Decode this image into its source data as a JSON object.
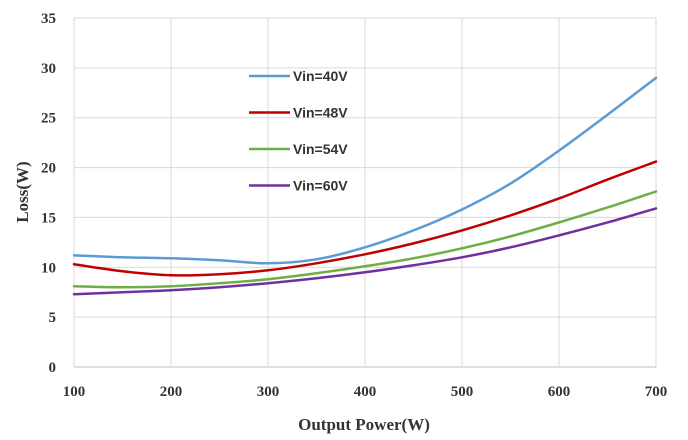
{
  "chart_data": {
    "type": "line",
    "title": "",
    "xlabel": "Output Power(W)",
    "ylabel": "Loss(W)",
    "xlim": [
      100,
      700
    ],
    "ylim": [
      0,
      35
    ],
    "xticks": [
      100,
      200,
      300,
      400,
      500,
      600,
      700
    ],
    "yticks": [
      0,
      5,
      10,
      15,
      20,
      25,
      30,
      35
    ],
    "grid": true,
    "legend_position": "inside-top-left",
    "series": [
      {
        "name": "Vin=40V",
        "color": "#5b9bd5",
        "x": [
          100,
          150,
          200,
          250,
          300,
          350,
          400,
          450,
          500,
          550,
          600,
          650,
          700
        ],
        "values": [
          11.2,
          11.0,
          10.9,
          10.7,
          10.4,
          10.8,
          12.0,
          13.7,
          15.8,
          18.4,
          21.7,
          25.3,
          29.0
        ]
      },
      {
        "name": "Vin=48V",
        "color": "#c00000",
        "x": [
          100,
          150,
          200,
          250,
          300,
          350,
          400,
          450,
          500,
          550,
          600,
          650,
          700
        ],
        "values": [
          10.3,
          9.6,
          9.2,
          9.3,
          9.7,
          10.4,
          11.3,
          12.4,
          13.7,
          15.2,
          16.9,
          18.8,
          20.6
        ]
      },
      {
        "name": "Vin=54V",
        "color": "#70ad47",
        "x": [
          100,
          150,
          200,
          250,
          300,
          350,
          400,
          450,
          500,
          550,
          600,
          650,
          700
        ],
        "values": [
          8.1,
          8.0,
          8.1,
          8.4,
          8.8,
          9.4,
          10.1,
          10.9,
          11.9,
          13.1,
          14.5,
          16.0,
          17.6
        ]
      },
      {
        "name": "Vin=60V",
        "color": "#7030a0",
        "x": [
          100,
          150,
          200,
          250,
          300,
          350,
          400,
          450,
          500,
          550,
          600,
          650,
          700
        ],
        "values": [
          7.3,
          7.5,
          7.7,
          8.0,
          8.4,
          8.9,
          9.5,
          10.2,
          11.0,
          12.0,
          13.2,
          14.5,
          15.9
        ]
      }
    ]
  }
}
